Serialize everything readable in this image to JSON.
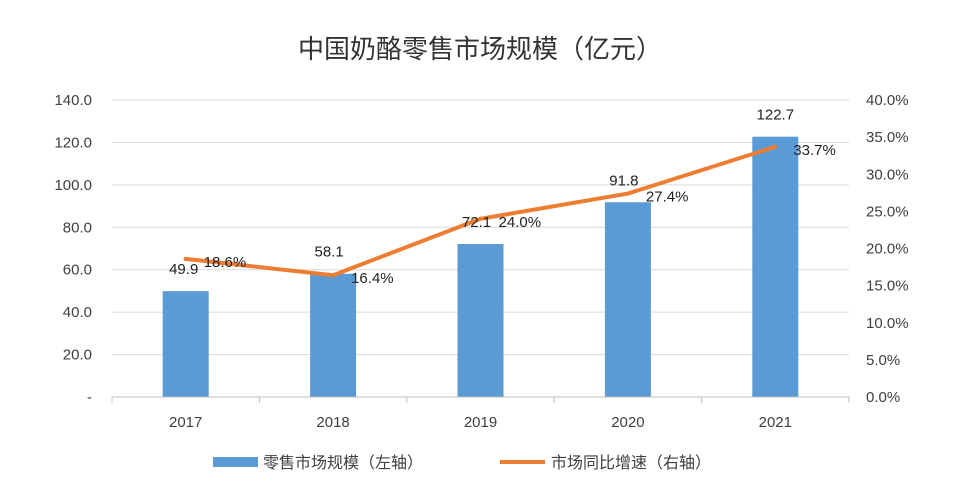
{
  "chart_data": {
    "type": "bar+line",
    "title": "中国奶酪零售市场规模（亿元）",
    "categories": [
      "2017",
      "2018",
      "2019",
      "2020",
      "2021"
    ],
    "series": [
      {
        "name": "零售市场规模（左轴）",
        "type": "bar",
        "axis": "left",
        "color": "#5b9bd5",
        "values": [
          49.9,
          58.1,
          72.1,
          91.8,
          122.7
        ],
        "labels": [
          "49.9",
          "58.1",
          "72.1",
          "91.8",
          "122.7"
        ]
      },
      {
        "name": "市场同比增速（右轴）",
        "type": "line",
        "axis": "right",
        "color": "#ed7d31",
        "values": [
          18.6,
          16.4,
          24.0,
          27.4,
          33.7
        ],
        "labels": [
          "18.6%",
          "16.4%",
          "24.0%",
          "27.4%",
          "33.7%"
        ]
      }
    ],
    "y_left": {
      "ylim": [
        0,
        140
      ],
      "ticks": [
        0,
        20,
        40,
        60,
        80,
        100,
        120,
        140
      ],
      "tick_labels": [
        "-",
        "20.0",
        "40.0",
        "60.0",
        "80.0",
        "100.0",
        "120.0",
        "140.0"
      ]
    },
    "y_right": {
      "ylim": [
        0,
        40
      ],
      "ticks": [
        0,
        5,
        10,
        15,
        20,
        25,
        30,
        35,
        40
      ],
      "tick_labels": [
        "0.0%",
        "5.0%",
        "10.0%",
        "15.0%",
        "20.0%",
        "25.0%",
        "30.0%",
        "35.0%",
        "40.0%"
      ]
    },
    "grid": true,
    "legend_position": "bottom"
  }
}
